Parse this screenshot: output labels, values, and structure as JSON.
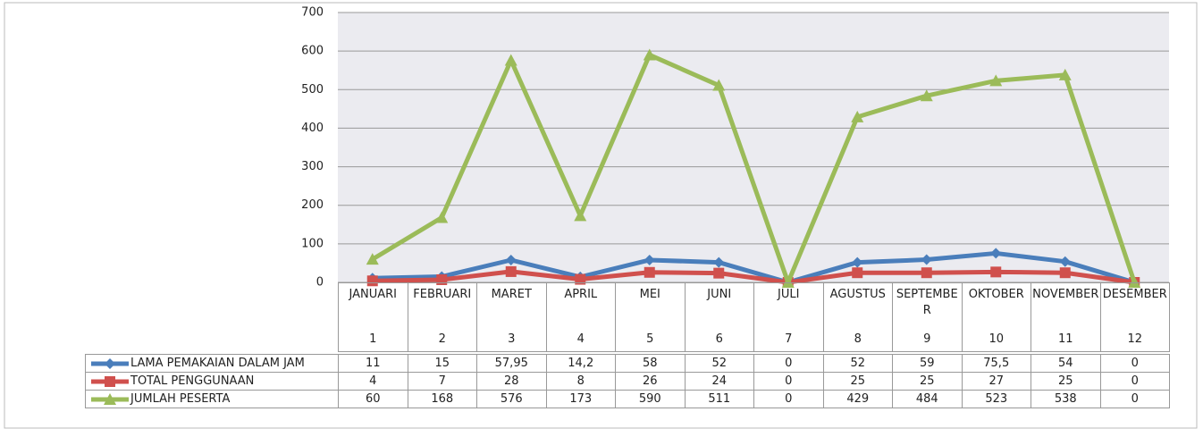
{
  "chart_data": {
    "type": "line",
    "categories": [
      "JANUARI",
      "FEBRUARI",
      "MARET",
      "APRIL",
      "MEI",
      "JUNI",
      "JULI",
      "AGUSTUS",
      "SEPTEMBER",
      "OKTOBER",
      "NOVEMBER",
      "DESEMBER"
    ],
    "category_numbers": [
      1,
      2,
      3,
      4,
      5,
      6,
      7,
      8,
      9,
      10,
      11,
      12
    ],
    "series": [
      {
        "name": "LAMA PEMAKAIAN DALAM JAM",
        "color": "#4a7ebb",
        "marker": "diamond",
        "values": [
          11,
          15,
          57.95,
          14.2,
          58,
          52,
          0,
          52,
          59,
          75.5,
          54,
          0
        ],
        "value_labels": [
          "11",
          "15",
          "57,95",
          "14,2",
          "58",
          "52",
          "0",
          "52",
          "59",
          "75,5",
          "54",
          "0"
        ]
      },
      {
        "name": "TOTAL PENGGUNAAN",
        "color": "#d0504d",
        "marker": "square",
        "values": [
          4,
          7,
          28,
          8,
          26,
          24,
          0,
          25,
          25,
          27,
          25,
          0
        ]
      },
      {
        "name": "JUMLAH PESERTA",
        "color": "#9bbb59",
        "marker": "triangle",
        "values": [
          60,
          168,
          576,
          173,
          590,
          511,
          0,
          429,
          484,
          523,
          538,
          0
        ]
      }
    ],
    "ylim": [
      0,
      700
    ],
    "yticks": [
      0,
      100,
      200,
      300,
      400,
      500,
      600,
      700
    ],
    "grid": true
  }
}
